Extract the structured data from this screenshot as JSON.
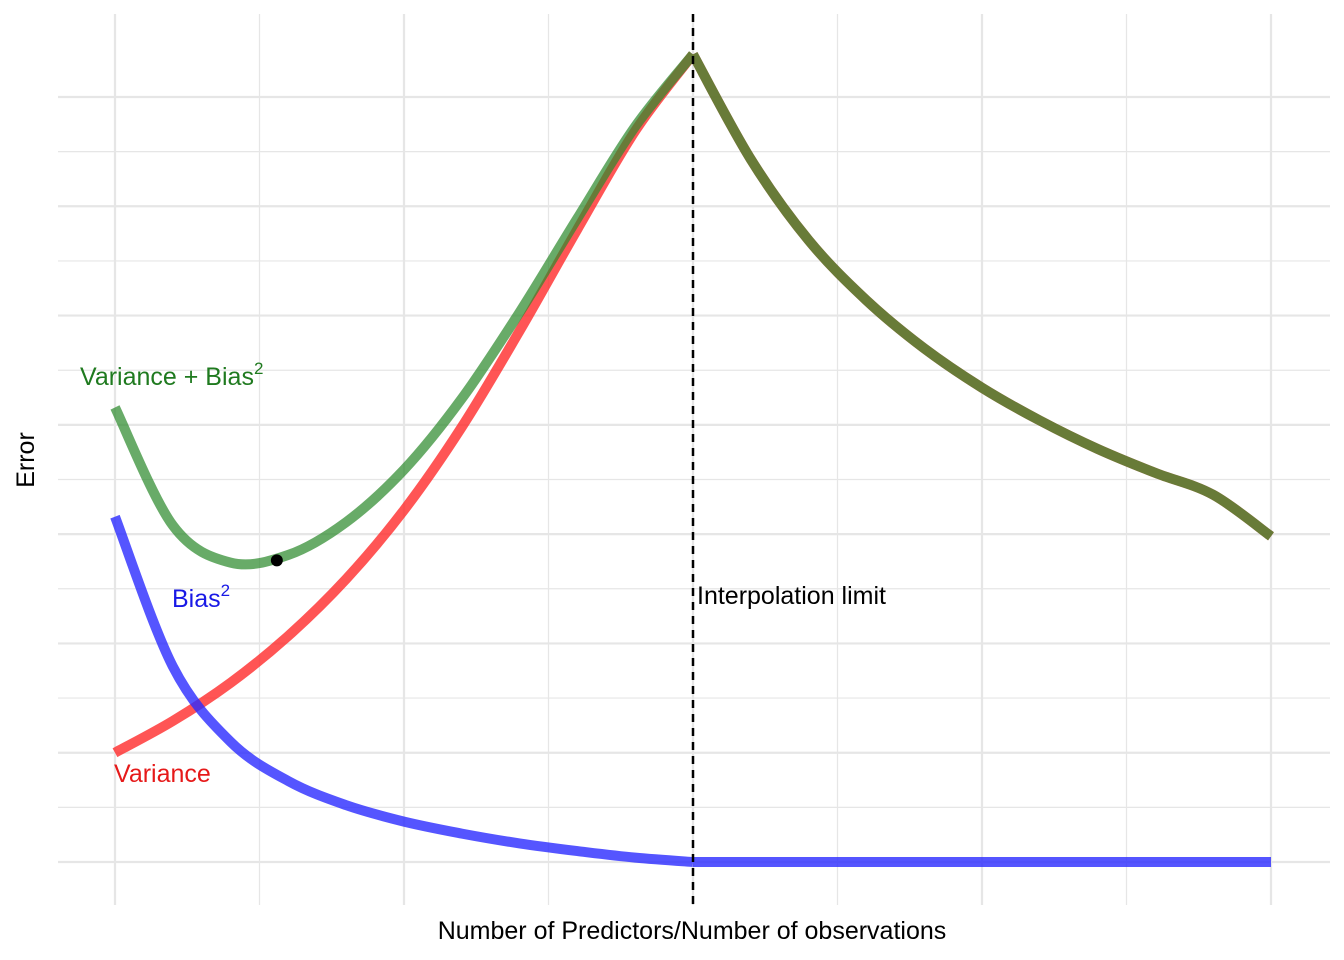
{
  "chart_data": {
    "type": "line",
    "xlabel": "Number of Predictors/Number of observations",
    "ylabel": "Error",
    "xlim": [
      0,
      2
    ],
    "ylim": [
      0,
      7
    ],
    "grid": true,
    "tick_labels_visible": false,
    "colors": {
      "variance": "#ff2a2a",
      "bias": "#2a2aff",
      "total": "#2e8b2e",
      "overlap": "#556b2f",
      "grid": "#e6e6e6",
      "vline": "#000000",
      "marker": "#000000"
    },
    "series": [
      {
        "name": "Variance",
        "x": [
          0,
          0.1,
          0.2,
          0.3,
          0.4,
          0.5,
          0.6,
          0.7,
          0.8,
          0.9,
          1.0,
          1.1,
          1.2,
          1.3,
          1.4,
          1.5,
          1.6,
          1.7,
          1.8,
          1.9,
          2.0
        ],
        "y": [
          1.0,
          1.29,
          1.64,
          2.07,
          2.59,
          3.22,
          3.98,
          4.86,
          5.79,
          6.69,
          7.39,
          6.43,
          5.69,
          5.14,
          4.7,
          4.34,
          4.04,
          3.78,
          3.56,
          3.36,
          2.98
        ]
      },
      {
        "name": "Bias",
        "superscript": "2",
        "x": [
          0,
          0.1,
          0.2,
          0.3,
          0.4,
          0.5,
          0.6,
          0.7,
          0.8,
          0.9,
          1.0,
          1.2,
          1.4,
          1.6,
          1.8,
          2.0
        ],
        "y": [
          3.16,
          1.79,
          1.1,
          0.74,
          0.52,
          0.37,
          0.26,
          0.17,
          0.1,
          0.04,
          0.0,
          0.0,
          0.0,
          0.0,
          0.0,
          0.0
        ]
      },
      {
        "name": "Variance + Bias",
        "superscript": "2",
        "x": [
          0,
          0.1,
          0.2,
          0.3,
          0.4,
          0.5,
          0.6,
          0.7,
          0.8,
          0.9,
          1.0,
          1.1,
          1.2,
          1.3,
          1.4,
          1.5,
          1.6,
          1.7,
          1.8,
          1.9,
          2.0
        ],
        "y": [
          4.16,
          3.08,
          2.74,
          2.81,
          3.11,
          3.59,
          4.24,
          5.03,
          5.89,
          6.73,
          7.39,
          6.43,
          5.69,
          5.14,
          4.7,
          4.34,
          4.04,
          3.78,
          3.56,
          3.36,
          2.98
        ]
      }
    ],
    "marker": {
      "x": 0.28,
      "y": 2.76
    },
    "vline": {
      "x": 1.0,
      "label": "Interpolation limit"
    }
  }
}
